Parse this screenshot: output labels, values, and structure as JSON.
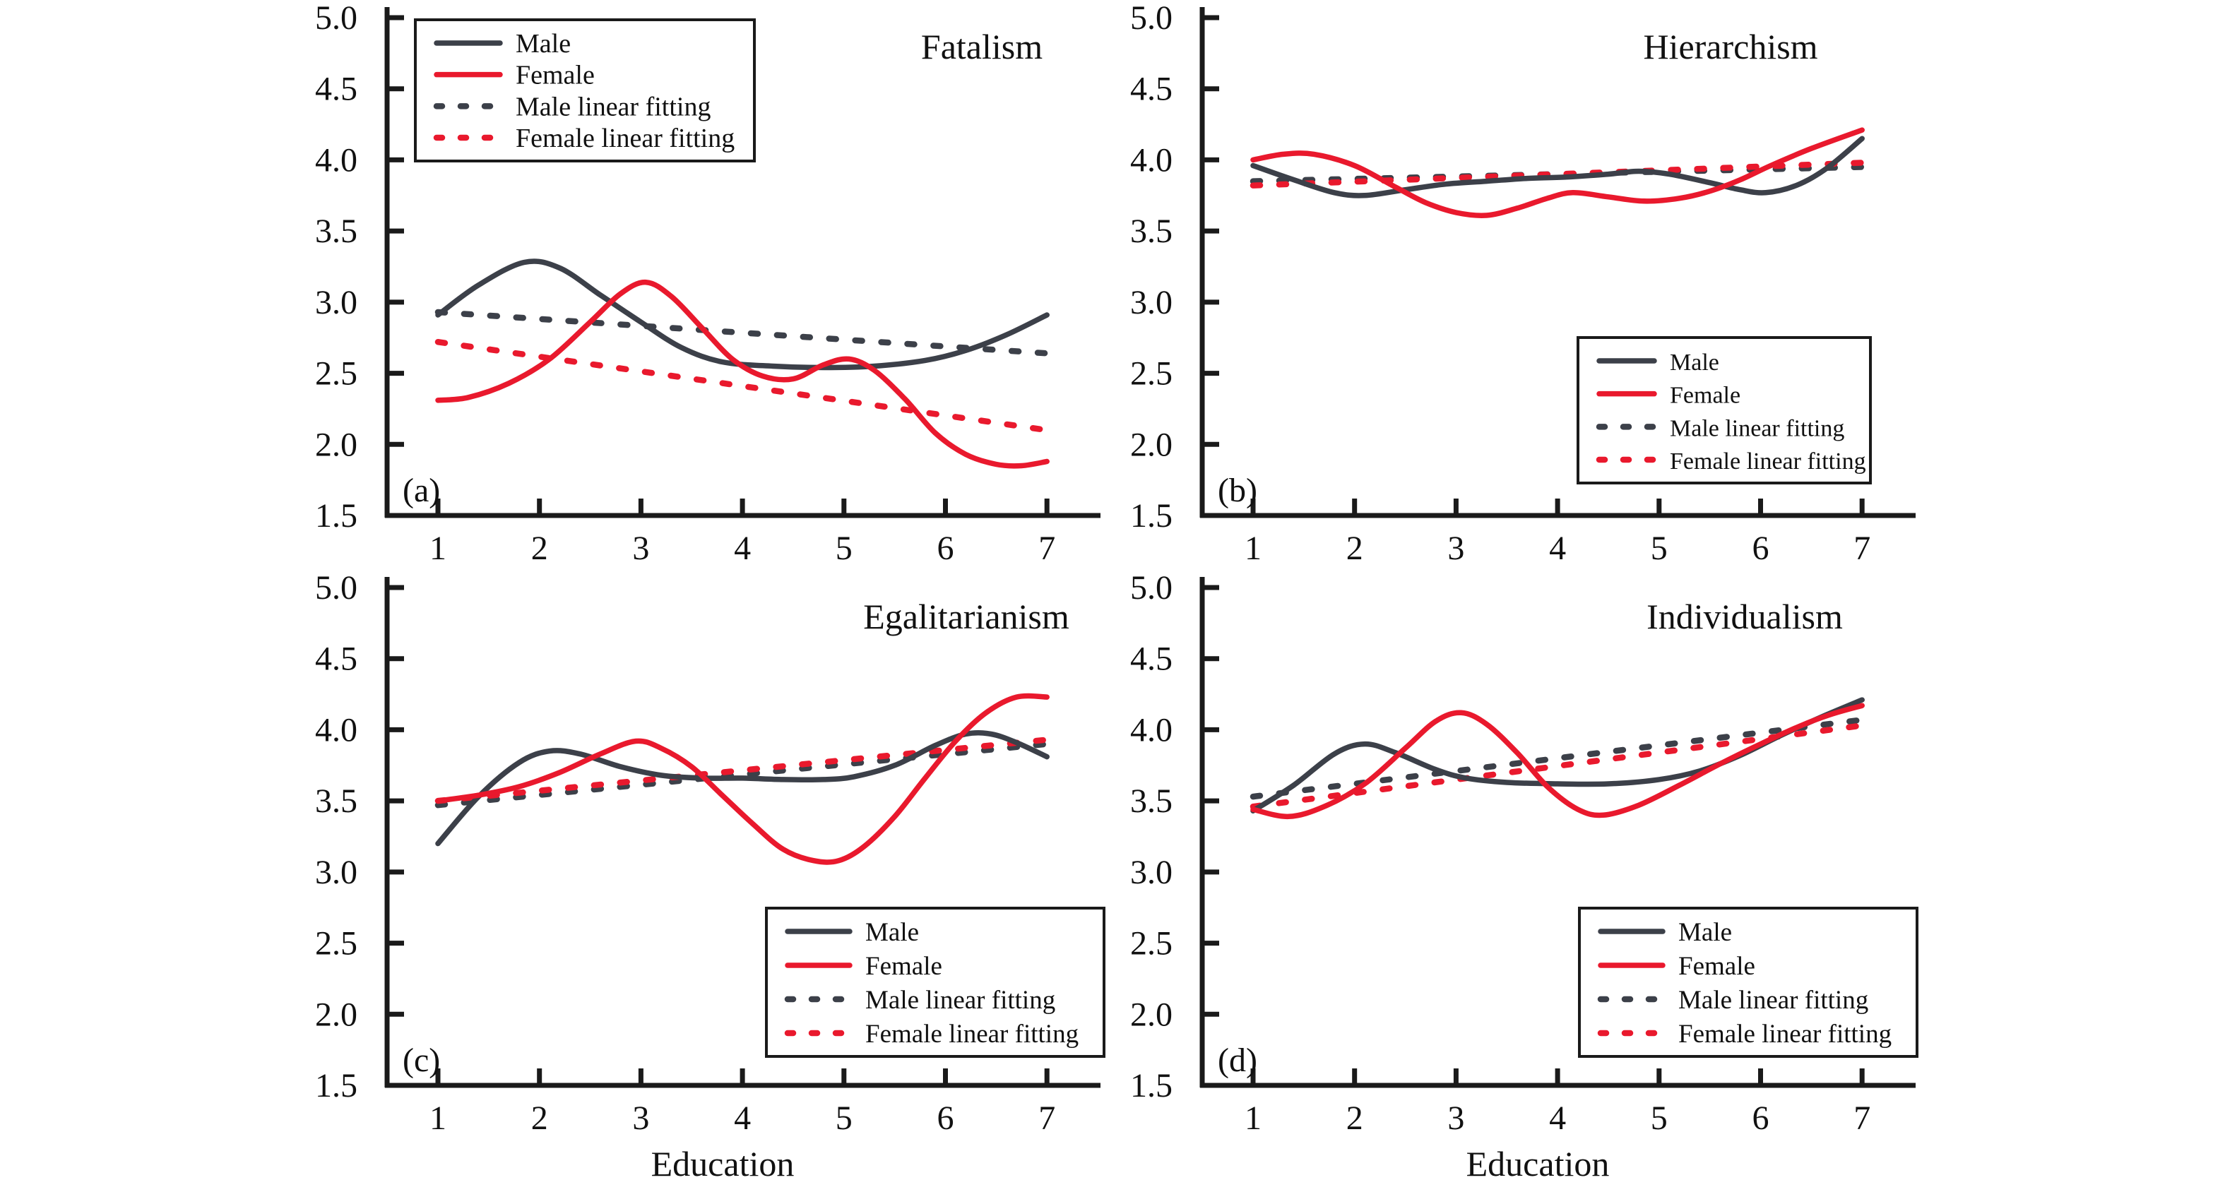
{
  "figure": {
    "kind": "2x2 panel line figure",
    "xlabel": "Education",
    "legend_labels": [
      "Male",
      "Female",
      "Male linear fitting",
      "Female linear fitting"
    ],
    "colors": {
      "male": "#3c4049",
      "female": "#e9192d",
      "axis": "#1a1a1a",
      "text": "#111111",
      "background": "#ffffff"
    }
  },
  "chart_data": [
    {
      "type": "line",
      "panel": "a",
      "corner_label": "(a)",
      "title": "Fatalism",
      "xlabel": "",
      "ylabel": "",
      "xlim": [
        1,
        7
      ],
      "ylim": [
        1.5,
        5.0
      ],
      "xticks": [
        1,
        2,
        3,
        4,
        5,
        6,
        7
      ],
      "yticks": [
        5.0,
        4.5,
        4.0,
        3.5,
        3.0,
        2.5,
        2.0,
        1.5
      ],
      "grid": false,
      "legend_position": "top-left",
      "series": [
        {
          "name": "Male",
          "style": "solid",
          "color_key": "male",
          "points": [
            [
              1,
              2.91
            ],
            [
              1.4,
              3.12
            ],
            [
              1.85,
              3.28
            ],
            [
              2.2,
              3.24
            ],
            [
              2.6,
              3.05
            ],
            [
              3,
              2.86
            ],
            [
              3.4,
              2.68
            ],
            [
              3.8,
              2.58
            ],
            [
              4.3,
              2.55
            ],
            [
              4.8,
              2.54
            ],
            [
              5.3,
              2.55
            ],
            [
              5.8,
              2.59
            ],
            [
              6.2,
              2.66
            ],
            [
              6.6,
              2.77
            ],
            [
              7,
              2.91
            ]
          ]
        },
        {
          "name": "Female",
          "style": "solid",
          "color_key": "female",
          "points": [
            [
              1,
              2.31
            ],
            [
              1.3,
              2.33
            ],
            [
              1.7,
              2.43
            ],
            [
              2.1,
              2.6
            ],
            [
              2.5,
              2.86
            ],
            [
              2.8,
              3.06
            ],
            [
              3.05,
              3.14
            ],
            [
              3.3,
              3.04
            ],
            [
              3.6,
              2.82
            ],
            [
              3.9,
              2.6
            ],
            [
              4.2,
              2.48
            ],
            [
              4.5,
              2.46
            ],
            [
              4.8,
              2.56
            ],
            [
              5.05,
              2.6
            ],
            [
              5.3,
              2.52
            ],
            [
              5.6,
              2.32
            ],
            [
              5.9,
              2.08
            ],
            [
              6.2,
              1.93
            ],
            [
              6.5,
              1.86
            ],
            [
              6.75,
              1.85
            ],
            [
              7,
              1.88
            ]
          ]
        },
        {
          "name": "Male linear fitting",
          "style": "dashed",
          "color_key": "male",
          "points": [
            [
              1,
              2.93
            ],
            [
              7,
              2.64
            ]
          ]
        },
        {
          "name": "Female linear fitting",
          "style": "dashed",
          "color_key": "female",
          "points": [
            [
              1,
              2.72
            ],
            [
              7,
              2.1
            ]
          ]
        }
      ]
    },
    {
      "type": "line",
      "panel": "b",
      "corner_label": "(b)",
      "title": "Hierarchism",
      "xlabel": "",
      "ylabel": "",
      "xlim": [
        1,
        7
      ],
      "ylim": [
        1.5,
        5.0
      ],
      "xticks": [
        1,
        2,
        3,
        4,
        5,
        6,
        7
      ],
      "yticks": [
        5.0,
        4.5,
        4.0,
        3.5,
        3.0,
        2.5,
        2.0,
        1.5
      ],
      "grid": false,
      "legend_position": "bottom-right",
      "series": [
        {
          "name": "Male",
          "style": "solid",
          "color_key": "male",
          "points": [
            [
              1,
              3.96
            ],
            [
              1.4,
              3.86
            ],
            [
              1.8,
              3.77
            ],
            [
              2.1,
              3.75
            ],
            [
              2.5,
              3.79
            ],
            [
              2.9,
              3.83
            ],
            [
              3.3,
              3.85
            ],
            [
              3.7,
              3.87
            ],
            [
              4.1,
              3.88
            ],
            [
              4.5,
              3.9
            ],
            [
              4.8,
              3.92
            ],
            [
              5.1,
              3.9
            ],
            [
              5.5,
              3.84
            ],
            [
              5.8,
              3.79
            ],
            [
              6.05,
              3.77
            ],
            [
              6.35,
              3.82
            ],
            [
              6.65,
              3.94
            ],
            [
              7,
              4.15
            ]
          ]
        },
        {
          "name": "Female",
          "style": "solid",
          "color_key": "female",
          "points": [
            [
              1,
              4.0
            ],
            [
              1.3,
              4.04
            ],
            [
              1.6,
              4.04
            ],
            [
              2,
              3.96
            ],
            [
              2.4,
              3.81
            ],
            [
              2.7,
              3.7
            ],
            [
              3,
              3.63
            ],
            [
              3.3,
              3.61
            ],
            [
              3.6,
              3.66
            ],
            [
              3.9,
              3.73
            ],
            [
              4.15,
              3.77
            ],
            [
              4.5,
              3.74
            ],
            [
              4.85,
              3.71
            ],
            [
              5.2,
              3.73
            ],
            [
              5.5,
              3.78
            ],
            [
              5.8,
              3.86
            ],
            [
              6.1,
              3.96
            ],
            [
              6.5,
              4.08
            ],
            [
              7,
              4.21
            ]
          ]
        },
        {
          "name": "Male linear fitting",
          "style": "dashed",
          "color_key": "male",
          "points": [
            [
              1,
              3.85
            ],
            [
              7,
              3.95
            ]
          ]
        },
        {
          "name": "Female linear fitting",
          "style": "dashed",
          "color_key": "female",
          "points": [
            [
              1,
              3.82
            ],
            [
              7,
              3.98
            ]
          ]
        }
      ]
    },
    {
      "type": "line",
      "panel": "c",
      "corner_label": "(c)",
      "title": "Egalitarianism",
      "xlabel": "Education",
      "ylabel": "",
      "xlim": [
        1,
        7
      ],
      "ylim": [
        1.5,
        5.0
      ],
      "xticks": [
        1,
        2,
        3,
        4,
        5,
        6,
        7
      ],
      "yticks": [
        5.0,
        4.5,
        4.0,
        3.5,
        3.0,
        2.5,
        2.0,
        1.5
      ],
      "grid": false,
      "legend_position": "bottom-right",
      "series": [
        {
          "name": "Male",
          "style": "solid",
          "color_key": "male",
          "points": [
            [
              1,
              3.2
            ],
            [
              1.4,
              3.53
            ],
            [
              1.8,
              3.77
            ],
            [
              2.1,
              3.85
            ],
            [
              2.4,
              3.83
            ],
            [
              2.8,
              3.74
            ],
            [
              3.2,
              3.68
            ],
            [
              3.6,
              3.66
            ],
            [
              4,
              3.66
            ],
            [
              4.4,
              3.65
            ],
            [
              4.8,
              3.65
            ],
            [
              5.1,
              3.67
            ],
            [
              5.5,
              3.75
            ],
            [
              5.9,
              3.89
            ],
            [
              6.2,
              3.97
            ],
            [
              6.45,
              3.97
            ],
            [
              6.7,
              3.91
            ],
            [
              7,
              3.81
            ]
          ]
        },
        {
          "name": "Female",
          "style": "solid",
          "color_key": "female",
          "points": [
            [
              1,
              3.5
            ],
            [
              1.4,
              3.54
            ],
            [
              1.8,
              3.6
            ],
            [
              2.2,
              3.7
            ],
            [
              2.6,
              3.83
            ],
            [
              2.95,
              3.92
            ],
            [
              3.2,
              3.87
            ],
            [
              3.5,
              3.74
            ],
            [
              3.8,
              3.54
            ],
            [
              4.1,
              3.34
            ],
            [
              4.4,
              3.16
            ],
            [
              4.7,
              3.08
            ],
            [
              4.95,
              3.08
            ],
            [
              5.2,
              3.18
            ],
            [
              5.5,
              3.39
            ],
            [
              5.8,
              3.66
            ],
            [
              6.1,
              3.92
            ],
            [
              6.4,
              4.12
            ],
            [
              6.7,
              4.23
            ],
            [
              7,
              4.23
            ]
          ]
        },
        {
          "name": "Male linear fitting",
          "style": "dashed",
          "color_key": "male",
          "points": [
            [
              1,
              3.47
            ],
            [
              7,
              3.9
            ]
          ]
        },
        {
          "name": "Female linear fitting",
          "style": "dashed",
          "color_key": "female",
          "points": [
            [
              1,
              3.5
            ],
            [
              7,
              3.93
            ]
          ]
        }
      ]
    },
    {
      "type": "line",
      "panel": "d",
      "corner_label": "(d)",
      "title": "Individualism",
      "xlabel": "Education",
      "ylabel": "",
      "xlim": [
        1,
        7
      ],
      "ylim": [
        1.5,
        5.0
      ],
      "xticks": [
        1,
        2,
        3,
        4,
        5,
        6,
        7
      ],
      "yticks": [
        5.0,
        4.5,
        4.0,
        3.5,
        3.0,
        2.5,
        2.0,
        1.5
      ],
      "grid": false,
      "legend_position": "bottom-right",
      "series": [
        {
          "name": "Male",
          "style": "solid",
          "color_key": "male",
          "points": [
            [
              1,
              3.43
            ],
            [
              1.4,
              3.61
            ],
            [
              1.8,
              3.83
            ],
            [
              2.1,
              3.9
            ],
            [
              2.4,
              3.84
            ],
            [
              2.8,
              3.72
            ],
            [
              3.1,
              3.66
            ],
            [
              3.5,
              3.63
            ],
            [
              4,
              3.62
            ],
            [
              4.5,
              3.62
            ],
            [
              5,
              3.65
            ],
            [
              5.4,
              3.71
            ],
            [
              5.8,
              3.82
            ],
            [
              6.2,
              3.96
            ],
            [
              6.6,
              4.09
            ],
            [
              7,
              4.21
            ]
          ]
        },
        {
          "name": "Female",
          "style": "solid",
          "color_key": "female",
          "points": [
            [
              1,
              3.44
            ],
            [
              1.35,
              3.39
            ],
            [
              1.7,
              3.46
            ],
            [
              2.1,
              3.62
            ],
            [
              2.5,
              3.87
            ],
            [
              2.8,
              4.06
            ],
            [
              3.05,
              4.12
            ],
            [
              3.3,
              4.04
            ],
            [
              3.6,
              3.84
            ],
            [
              3.9,
              3.6
            ],
            [
              4.2,
              3.44
            ],
            [
              4.45,
              3.4
            ],
            [
              4.8,
              3.47
            ],
            [
              5.2,
              3.61
            ],
            [
              5.6,
              3.76
            ],
            [
              6,
              3.9
            ],
            [
              6.4,
              4.03
            ],
            [
              6.7,
              4.11
            ],
            [
              7,
              4.17
            ]
          ]
        },
        {
          "name": "Male linear fitting",
          "style": "dashed",
          "color_key": "male",
          "points": [
            [
              1,
              3.53
            ],
            [
              7,
              4.07
            ]
          ]
        },
        {
          "name": "Female linear fitting",
          "style": "dashed",
          "color_key": "female",
          "points": [
            [
              1,
              3.46
            ],
            [
              7,
              4.03
            ]
          ]
        }
      ]
    }
  ]
}
